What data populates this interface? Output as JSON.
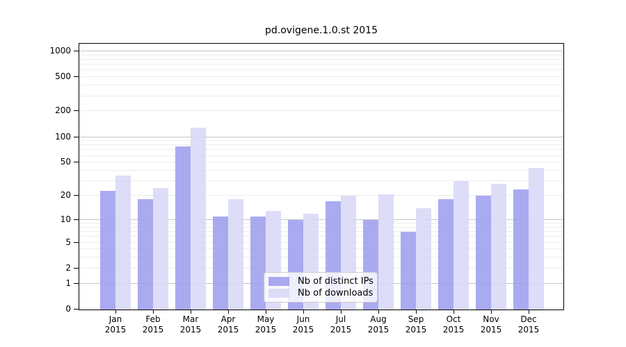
{
  "title": "pd.ovigene.1.0.st 2015",
  "colors": {
    "bar_distinct_ips": "#9b9bef",
    "bar_downloads": "#d7d7f7",
    "grid_major": "#c6c6c6",
    "grid_minor": "#ececec",
    "axis": "#000000",
    "legend_border": "#cccccc"
  },
  "chart_data": {
    "type": "bar",
    "title": "pd.ovigene.1.0.st 2015",
    "y_scale": "pseudo-log: position proportional to log10(1+value)",
    "ylim": [
      0,
      1200
    ],
    "grid": true,
    "legend_position": "bottom-center",
    "y_ticks": [
      0,
      1,
      2,
      5,
      10,
      20,
      50,
      100,
      200,
      500,
      1000
    ],
    "grid_major_values": [
      1,
      10,
      100,
      1000
    ],
    "grid_minor_values": [
      2,
      3,
      4,
      5,
      6,
      7,
      8,
      9,
      20,
      30,
      40,
      50,
      60,
      70,
      80,
      90,
      200,
      300,
      400,
      500,
      600,
      700,
      800,
      900
    ],
    "categories": [
      "Jan",
      "Feb",
      "Mar",
      "Apr",
      "May",
      "Jun",
      "Jul",
      "Aug",
      "Sep",
      "Oct",
      "Nov",
      "Dec"
    ],
    "x_year": "2015",
    "xlabel": "",
    "ylabel": "",
    "series": [
      {
        "name": "Nb of distinct IPs",
        "color": "#9b9bef",
        "values": [
          23,
          18,
          78,
          11,
          11,
          10,
          17,
          10,
          7,
          18,
          20,
          24
        ]
      },
      {
        "name": "Nb of downloads",
        "color": "#d7d7f7",
        "values": [
          35,
          25,
          130,
          18,
          13,
          12,
          20,
          21,
          14,
          30,
          28,
          43
        ]
      }
    ]
  }
}
